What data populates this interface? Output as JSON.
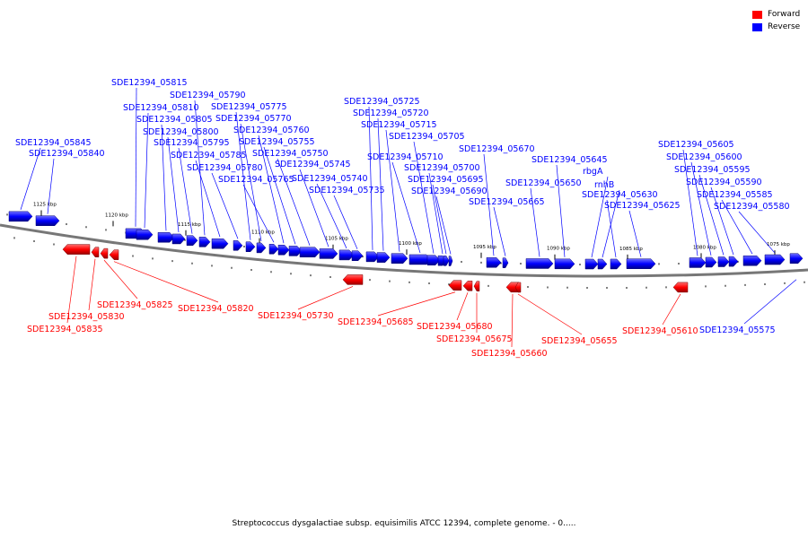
{
  "legend": {
    "forward": "Forward",
    "reverse": "Reverse"
  },
  "colors": {
    "forward": "#ff0000",
    "reverse": "#0000ff",
    "backbone": "#777777"
  },
  "caption": "Streptococcus dysgalactiae subsp. equisimilis ATCC 12394, complete genome. - 0.....",
  "ticks": [
    "1125 kbp",
    "1120 kbp",
    "1115 kbp",
    "1110 kbp",
    "1105 kbp",
    "1100 kbp",
    "1095 kbp",
    "1090 kbp",
    "1085 kbp",
    "1080 kbp",
    "1075 kbp"
  ],
  "reverse_genes": [
    "SDE12394_05845",
    "SDE12394_05840",
    "SDE12394_05815",
    "SDE12394_05810",
    "SDE12394_05805",
    "SDE12394_05800",
    "SDE12394_05795",
    "SDE12394_05790",
    "SDE12394_05785",
    "SDE12394_05780",
    "SDE12394_05775",
    "SDE12394_05770",
    "SDE12394_05765",
    "SDE12394_05760",
    "SDE12394_05755",
    "SDE12394_05750",
    "SDE12394_05745",
    "SDE12394_05740",
    "SDE12394_05735",
    "SDE12394_05725",
    "SDE12394_05720",
    "SDE12394_05715",
    "SDE12394_05710",
    "SDE12394_05705",
    "SDE12394_05700",
    "SDE12394_05695",
    "SDE12394_05690",
    "SDE12394_05670",
    "SDE12394_05665",
    "SDE12394_05650",
    "SDE12394_05645",
    "rbgA",
    "rnhB",
    "SDE12394_05630",
    "SDE12394_05625",
    "SDE12394_05605",
    "SDE12394_05600",
    "SDE12394_05595",
    "SDE12394_05590",
    "SDE12394_05585",
    "SDE12394_05580",
    "SDE12394_05575"
  ],
  "forward_genes": [
    "SDE12394_05835",
    "SDE12394_05830",
    "SDE12394_05825",
    "SDE12394_05820",
    "SDE12394_05730",
    "SDE12394_05685",
    "SDE12394_05680",
    "SDE12394_05675",
    "SDE12394_05660",
    "SDE12394_05655",
    "SDE12394_05610"
  ]
}
